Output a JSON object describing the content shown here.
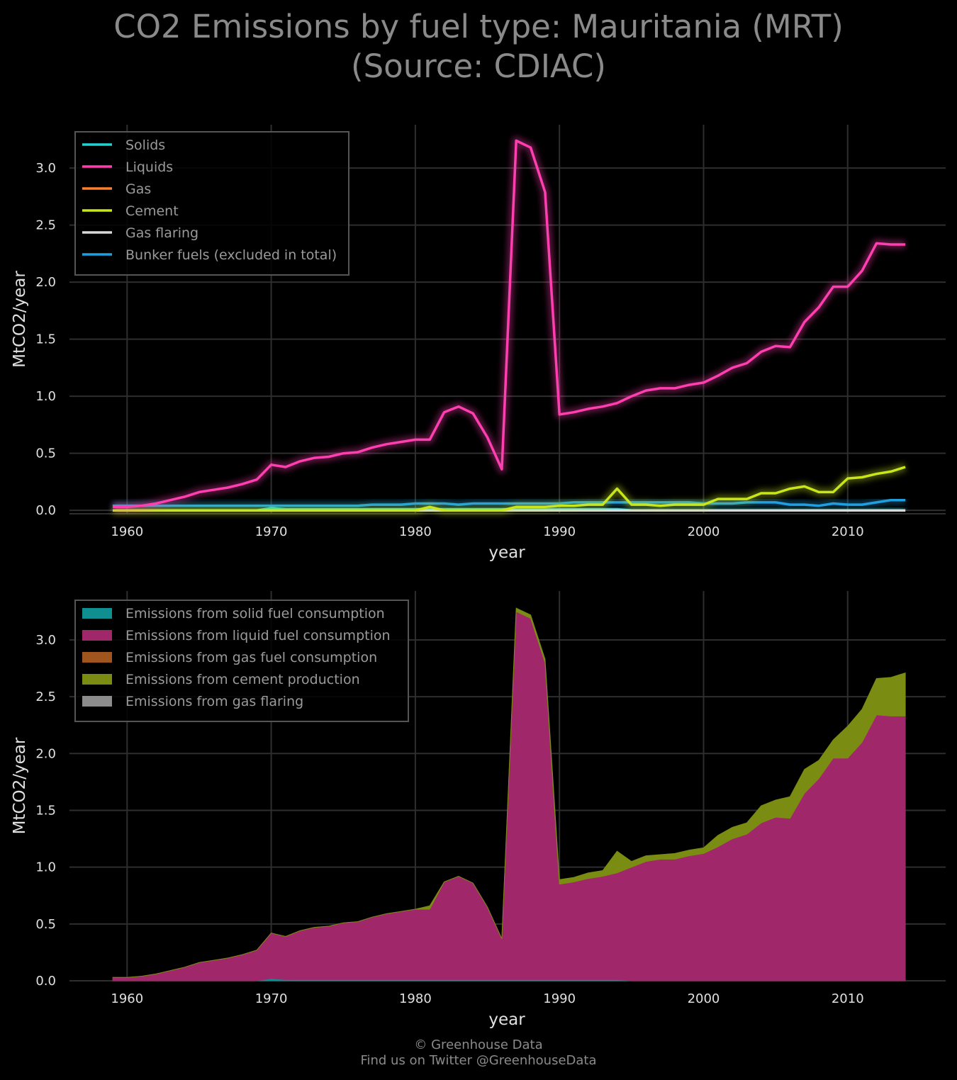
{
  "title_line1": "CO2 Emissions by fuel type: Mauritania (MRT)",
  "title_line2": "(Source: CDIAC)",
  "footer_line1": "© Greenhouse Data",
  "footer_line2": "Find us on Twitter @GreenhouseData",
  "chart_data": [
    {
      "type": "line",
      "xlabel": "year",
      "ylabel": "MtCO2/year",
      "xlim": [
        1956,
        2016.8
      ],
      "ylim": [
        -0.03,
        3.38
      ],
      "xticks": [
        1960,
        1970,
        1980,
        1990,
        2000,
        2010
      ],
      "yticks": [
        0.0,
        0.5,
        1.0,
        1.5,
        2.0,
        2.5,
        3.0
      ],
      "grid": true,
      "legend_position": "top-left",
      "x": [
        1959,
        1960,
        1961,
        1962,
        1963,
        1964,
        1965,
        1966,
        1967,
        1968,
        1969,
        1970,
        1971,
        1972,
        1973,
        1974,
        1975,
        1976,
        1977,
        1978,
        1979,
        1980,
        1981,
        1982,
        1983,
        1984,
        1985,
        1986,
        1987,
        1988,
        1989,
        1990,
        1991,
        1992,
        1993,
        1994,
        1995,
        1996,
        1997,
        1998,
        1999,
        2000,
        2001,
        2002,
        2003,
        2004,
        2005,
        2006,
        2007,
        2008,
        2009,
        2010,
        2011,
        2012,
        2013,
        2014
      ],
      "series": [
        {
          "name": "Solids",
          "color": "#1fd3d3",
          "values": [
            0,
            0,
            0,
            0,
            0,
            0,
            0,
            0,
            0,
            0,
            0,
            0.02,
            0.01,
            0.01,
            0.01,
            0.01,
            0.01,
            0.01,
            0.01,
            0.01,
            0.01,
            0.01,
            0.01,
            0.01,
            0.01,
            0.01,
            0.01,
            0.01,
            0.01,
            0.01,
            0.01,
            0.01,
            0.01,
            0.01,
            0.01,
            0.01,
            0,
            0,
            0,
            0,
            0,
            0,
            0,
            0,
            0,
            0,
            0,
            0,
            0,
            0,
            0,
            0,
            0,
            0,
            0,
            0
          ]
        },
        {
          "name": "Liquids",
          "color": "#ff3fb0",
          "values": [
            0.03,
            0.03,
            0.04,
            0.06,
            0.09,
            0.12,
            0.16,
            0.18,
            0.2,
            0.23,
            0.27,
            0.4,
            0.38,
            0.43,
            0.46,
            0.47,
            0.5,
            0.51,
            0.55,
            0.58,
            0.6,
            0.62,
            0.62,
            0.86,
            0.91,
            0.85,
            0.64,
            0.36,
            3.24,
            3.18,
            2.79,
            0.84,
            0.86,
            0.89,
            0.91,
            0.94,
            1.0,
            1.05,
            1.07,
            1.07,
            1.1,
            1.12,
            1.18,
            1.25,
            1.29,
            1.39,
            1.44,
            1.43,
            1.65,
            1.78,
            1.96,
            1.96,
            2.1,
            2.34,
            2.33,
            2.33
          ]
        },
        {
          "name": "Gas",
          "color": "#ff7f2a",
          "values": [
            0,
            0,
            0,
            0,
            0,
            0,
            0,
            0,
            0,
            0,
            0,
            0,
            0,
            0,
            0,
            0,
            0,
            0,
            0,
            0,
            0,
            0,
            0,
            0,
            0,
            0,
            0,
            0,
            0,
            0,
            0,
            0,
            0,
            0,
            0,
            0,
            0,
            0,
            0,
            0,
            0,
            0,
            0,
            0,
            0,
            0,
            0,
            0,
            0,
            0,
            0,
            0,
            0,
            0,
            0,
            0
          ]
        },
        {
          "name": "Cement",
          "color": "#c8e619",
          "values": [
            0,
            0,
            0,
            0,
            0,
            0,
            0,
            0,
            0,
            0,
            0,
            0,
            0,
            0,
            0,
            0,
            0,
            0,
            0,
            0,
            0,
            0,
            0.03,
            0,
            0,
            0,
            0,
            0,
            0.03,
            0.03,
            0.03,
            0.04,
            0.04,
            0.05,
            0.05,
            0.19,
            0.05,
            0.05,
            0.04,
            0.05,
            0.05,
            0.05,
            0.1,
            0.1,
            0.1,
            0.15,
            0.15,
            0.19,
            0.21,
            0.16,
            0.16,
            0.28,
            0.29,
            0.32,
            0.34,
            0.38
          ]
        },
        {
          "name": "Gas flaring",
          "color": "#d9d9d9",
          "values": [
            0,
            0,
            0,
            0,
            0,
            0,
            0,
            0,
            0,
            0,
            0,
            0,
            0,
            0,
            0,
            0,
            0,
            0,
            0,
            0,
            0,
            0,
            0,
            0,
            0,
            0,
            0,
            0,
            0,
            0,
            0,
            0,
            0,
            0,
            0,
            0,
            0,
            0,
            0,
            0,
            0,
            0,
            0,
            0,
            0,
            0,
            0,
            0,
            0,
            0,
            0,
            0,
            0,
            0,
            0,
            0
          ]
        },
        {
          "name": "Bunker fuels (excluded in total)",
          "color": "#1f9fe0",
          "values": [
            0.04,
            0.04,
            0.04,
            0.04,
            0.04,
            0.04,
            0.04,
            0.04,
            0.04,
            0.04,
            0.04,
            0.04,
            0.04,
            0.04,
            0.04,
            0.04,
            0.04,
            0.04,
            0.05,
            0.05,
            0.05,
            0.06,
            0.06,
            0.06,
            0.05,
            0.06,
            0.06,
            0.06,
            0.06,
            0.06,
            0.06,
            0.06,
            0.07,
            0.07,
            0.07,
            0.07,
            0.07,
            0.07,
            0.07,
            0.07,
            0.07,
            0.06,
            0.06,
            0.06,
            0.07,
            0.07,
            0.07,
            0.05,
            0.05,
            0.04,
            0.06,
            0.05,
            0.05,
            0.07,
            0.09,
            0.09
          ]
        }
      ]
    },
    {
      "type": "area",
      "stacked": true,
      "xlabel": "year",
      "ylabel": "MtCO2/year",
      "xlim": [
        1956,
        2016.8
      ],
      "ylim": [
        0.0,
        3.43
      ],
      "xticks": [
        1960,
        1970,
        1980,
        1990,
        2000,
        2010
      ],
      "yticks": [
        0.0,
        0.5,
        1.0,
        1.5,
        2.0,
        2.5,
        3.0
      ],
      "grid": true,
      "legend_position": "top-left",
      "x": [
        1959,
        1960,
        1961,
        1962,
        1963,
        1964,
        1965,
        1966,
        1967,
        1968,
        1969,
        1970,
        1971,
        1972,
        1973,
        1974,
        1975,
        1976,
        1977,
        1978,
        1979,
        1980,
        1981,
        1982,
        1983,
        1984,
        1985,
        1986,
        1987,
        1988,
        1989,
        1990,
        1991,
        1992,
        1993,
        1994,
        1995,
        1996,
        1997,
        1998,
        1999,
        2000,
        2001,
        2002,
        2003,
        2004,
        2005,
        2006,
        2007,
        2008,
        2009,
        2010,
        2011,
        2012,
        2013,
        2014
      ],
      "series": [
        {
          "name": "Emissions from solid fuel consumption",
          "color": "#0f8f8f",
          "values": [
            0,
            0,
            0,
            0,
            0,
            0,
            0,
            0,
            0,
            0,
            0,
            0.02,
            0.01,
            0.01,
            0.01,
            0.01,
            0.01,
            0.01,
            0.01,
            0.01,
            0.01,
            0.01,
            0.01,
            0.01,
            0.01,
            0.01,
            0.01,
            0.01,
            0.01,
            0.01,
            0.01,
            0.01,
            0.01,
            0.01,
            0.01,
            0.01,
            0,
            0,
            0,
            0,
            0,
            0,
            0,
            0,
            0,
            0,
            0,
            0,
            0,
            0,
            0,
            0,
            0,
            0,
            0,
            0
          ]
        },
        {
          "name": "Emissions from liquid fuel consumption",
          "color": "#a0286a",
          "values": [
            0.03,
            0.03,
            0.04,
            0.06,
            0.09,
            0.12,
            0.16,
            0.18,
            0.2,
            0.23,
            0.27,
            0.4,
            0.38,
            0.43,
            0.46,
            0.47,
            0.5,
            0.51,
            0.55,
            0.58,
            0.6,
            0.62,
            0.62,
            0.86,
            0.91,
            0.85,
            0.64,
            0.36,
            3.24,
            3.18,
            2.79,
            0.84,
            0.86,
            0.89,
            0.91,
            0.94,
            1.0,
            1.05,
            1.07,
            1.07,
            1.1,
            1.12,
            1.18,
            1.25,
            1.29,
            1.39,
            1.44,
            1.43,
            1.65,
            1.78,
            1.96,
            1.96,
            2.1,
            2.34,
            2.33,
            2.33
          ]
        },
        {
          "name": "Emissions from gas fuel consumption",
          "color": "#a0541e",
          "values": [
            0,
            0,
            0,
            0,
            0,
            0,
            0,
            0,
            0,
            0,
            0,
            0,
            0,
            0,
            0,
            0,
            0,
            0,
            0,
            0,
            0,
            0,
            0,
            0,
            0,
            0,
            0,
            0,
            0,
            0,
            0,
            0,
            0,
            0,
            0,
            0,
            0,
            0,
            0,
            0,
            0,
            0,
            0,
            0,
            0,
            0,
            0,
            0,
            0,
            0,
            0,
            0,
            0,
            0,
            0,
            0
          ]
        },
        {
          "name": "Emissions from cement production",
          "color": "#7a8c12",
          "values": [
            0,
            0,
            0,
            0,
            0,
            0,
            0,
            0,
            0,
            0,
            0,
            0,
            0,
            0,
            0,
            0,
            0,
            0,
            0,
            0,
            0,
            0,
            0.03,
            0,
            0,
            0,
            0,
            0,
            0.03,
            0.03,
            0.03,
            0.04,
            0.04,
            0.05,
            0.05,
            0.19,
            0.05,
            0.05,
            0.04,
            0.05,
            0.05,
            0.05,
            0.1,
            0.1,
            0.1,
            0.15,
            0.15,
            0.19,
            0.21,
            0.16,
            0.16,
            0.28,
            0.29,
            0.32,
            0.34,
            0.38
          ]
        },
        {
          "name": "Emissions from gas flaring",
          "color": "#8c8c8c",
          "values": [
            0,
            0,
            0,
            0,
            0,
            0,
            0,
            0,
            0,
            0,
            0,
            0,
            0,
            0,
            0,
            0,
            0,
            0,
            0,
            0,
            0,
            0,
            0,
            0,
            0,
            0,
            0,
            0,
            0,
            0,
            0,
            0,
            0,
            0,
            0,
            0,
            0,
            0,
            0,
            0,
            0,
            0,
            0,
            0,
            0,
            0,
            0,
            0,
            0,
            0,
            0,
            0,
            0,
            0,
            0,
            0
          ]
        }
      ]
    }
  ]
}
